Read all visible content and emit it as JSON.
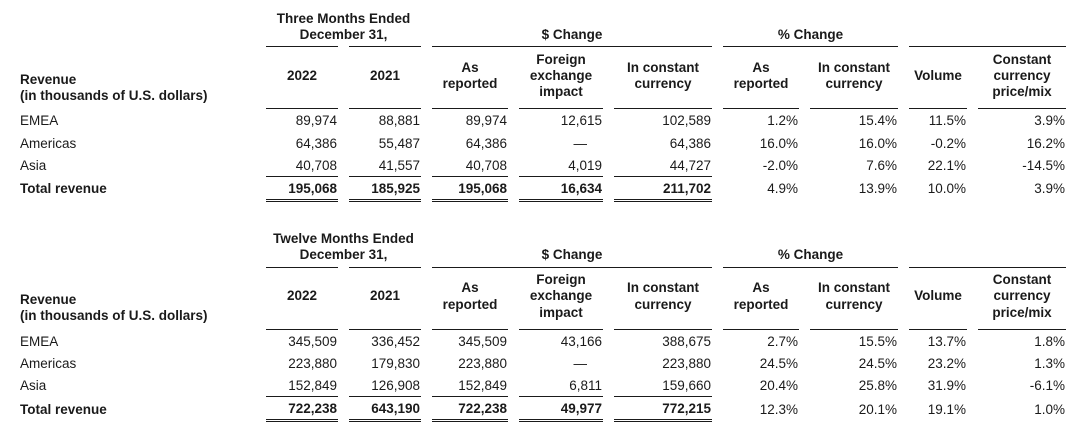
{
  "page": {
    "background_color": "#ffffff",
    "text_color": "#1a1a1a",
    "rule_color": "#1a1a1a"
  },
  "labels": {
    "row_header_title": "Revenue",
    "row_header_subtitle": "(in thousands of U.S. dollars)",
    "dollar_change_group": "$ Change",
    "percent_change_group": "% Change"
  },
  "columns": [
    "2022",
    "2021",
    "As\nreported",
    "Foreign\nexchange\nimpact",
    "In constant\ncurrency",
    "As\nreported",
    "In constant\ncurrency",
    "Volume",
    "Constant\ncurrency\nprice/mix"
  ],
  "tables": [
    {
      "period": "Three Months Ended\nDecember 31,",
      "rows": [
        {
          "label": "EMEA",
          "values": [
            "89,974",
            "88,881",
            "89,974",
            "12,615",
            "102,589",
            "1.2%",
            "15.4%",
            "11.5%",
            "3.9%"
          ]
        },
        {
          "label": "Americas",
          "values": [
            "64,386",
            "55,487",
            "64,386",
            "—",
            "64,386",
            "16.0%",
            "16.0%",
            "-0.2%",
            "16.2%"
          ]
        },
        {
          "label": "Asia",
          "values": [
            "40,708",
            "41,557",
            "40,708",
            "4,019",
            "44,727",
            "-2.0%",
            "7.6%",
            "22.1%",
            "-14.5%"
          ]
        },
        {
          "label": "Total revenue",
          "values": [
            "195,068",
            "185,925",
            "195,068",
            "16,634",
            "211,702",
            "4.9%",
            "13.9%",
            "10.0%",
            "3.9%"
          ]
        }
      ]
    },
    {
      "period": "Twelve Months Ended\nDecember 31,",
      "rows": [
        {
          "label": "EMEA",
          "values": [
            "345,509",
            "336,452",
            "345,509",
            "43,166",
            "388,675",
            "2.7%",
            "15.5%",
            "13.7%",
            "1.8%"
          ]
        },
        {
          "label": "Americas",
          "values": [
            "223,880",
            "179,830",
            "223,880",
            "—",
            "223,880",
            "24.5%",
            "24.5%",
            "23.2%",
            "1.3%"
          ]
        },
        {
          "label": "Asia",
          "values": [
            "152,849",
            "126,908",
            "152,849",
            "6,811",
            "159,660",
            "20.4%",
            "25.8%",
            "31.9%",
            "-6.1%"
          ]
        },
        {
          "label": "Total revenue",
          "values": [
            "722,238",
            "643,190",
            "722,238",
            "49,977",
            "772,215",
            "12.3%",
            "20.1%",
            "19.1%",
            "1.0%"
          ]
        }
      ]
    }
  ]
}
